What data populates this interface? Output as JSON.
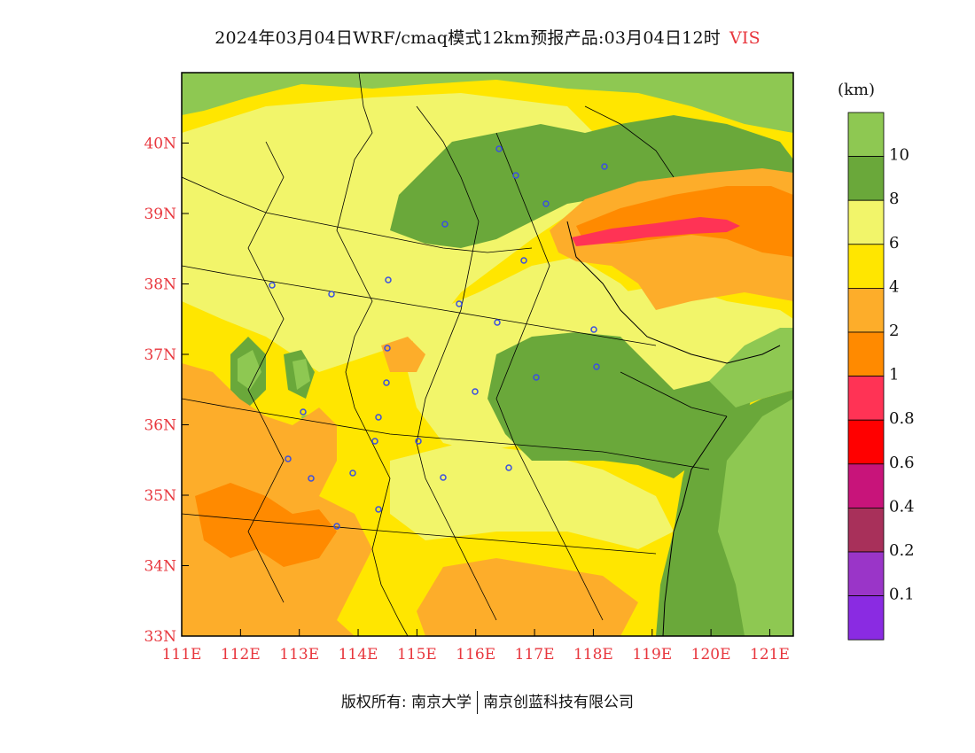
{
  "title": {
    "main": "2024年03月04日WRF/cmaq模式12km预报产品:03月04日12时",
    "variable": "VIS"
  },
  "axes": {
    "lat_labels": [
      "40N",
      "39N",
      "38N",
      "37N",
      "36N",
      "35N",
      "34N",
      "33N"
    ],
    "lat_values": [
      40,
      39,
      38,
      37,
      36,
      35,
      34,
      33
    ],
    "lon_labels": [
      "111E",
      "112E",
      "113E",
      "114E",
      "115E",
      "116E",
      "117E",
      "118E",
      "119E",
      "120E",
      "121E"
    ],
    "lon_values": [
      111,
      112,
      113,
      114,
      115,
      116,
      117,
      118,
      119,
      120,
      121
    ],
    "lat_range": [
      33,
      41
    ],
    "lon_range": [
      111,
      121.4
    ]
  },
  "legend": {
    "unit": "(km)",
    "bins": [
      {
        "label": "10",
        "color": "#8ec852"
      },
      {
        "label": "8",
        "color": "#6aa83a"
      },
      {
        "label": "6",
        "color": "#f2f56a"
      },
      {
        "label": "4",
        "color": "#ffe600"
      },
      {
        "label": "2",
        "color": "#fdad2a"
      },
      {
        "label": "1",
        "color": "#ff8a00"
      },
      {
        "label": "0.8",
        "color": "#ff3355"
      },
      {
        "label": "0.6",
        "color": "#ff0000"
      },
      {
        "label": "0.4",
        "color": "#c8147a"
      },
      {
        "label": "0.2",
        "color": "#a8305a"
      },
      {
        "label": "0.1",
        "color": "#9a35c8"
      },
      {
        "label": "",
        "color": "#8a2be2"
      }
    ]
  },
  "colors": {
    "vis_gt10": "#8ec852",
    "vis_8_10": "#6aa83a",
    "vis_6_8": "#f2f56a",
    "vis_4_6": "#ffe600",
    "vis_2_4": "#fdad2a",
    "vis_1_2": "#ff8a00",
    "vis_08_1": "#ff3355",
    "station_marker": "#3a4fe0",
    "axis_label": "#e8363d"
  },
  "copyright": {
    "left": "版权所有: 南京大学",
    "right": "南京创蓝科技有限公司"
  }
}
